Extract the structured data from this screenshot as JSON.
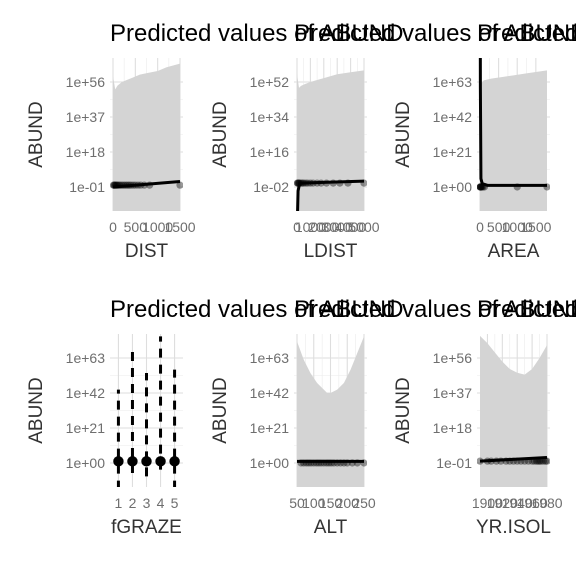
{
  "chart_data": [
    {
      "type": "line",
      "title": "Predicted values of ABUND",
      "xlabel": "DIST",
      "ylabel": "ABUND",
      "xlim": [
        0,
        1500
      ],
      "x_ticks": [
        0,
        500,
        1000,
        1500
      ],
      "x_tick_labels": [
        "0",
        "500",
        "1000",
        "1500"
      ],
      "y_scale": "log",
      "y_ticks": [
        "1e-01",
        "1e+18",
        "1e+37",
        "1e+56"
      ],
      "grid": true,
      "ci_band": {
        "x": [
          0,
          50,
          100,
          200,
          400,
          600,
          800,
          1000,
          1200,
          1500
        ],
        "upper": [
          59,
          52,
          54,
          56,
          58,
          60,
          61,
          62,
          64,
          66
        ]
      },
      "series": [
        {
          "x": [
            0,
            1500
          ],
          "y": [
            -1,
            2
          ]
        }
      ],
      "points": [
        {
          "x": 10,
          "y": 0
        },
        {
          "x": 25,
          "y": 0
        },
        {
          "x": 40,
          "y": 0
        },
        {
          "x": 60,
          "y": 0
        },
        {
          "x": 80,
          "y": 0
        },
        {
          "x": 100,
          "y": 0
        },
        {
          "x": 130,
          "y": 0
        },
        {
          "x": 160,
          "y": 0
        },
        {
          "x": 200,
          "y": 0
        },
        {
          "x": 240,
          "y": 0
        },
        {
          "x": 280,
          "y": 0
        },
        {
          "x": 320,
          "y": 0
        },
        {
          "x": 360,
          "y": 0
        },
        {
          "x": 400,
          "y": 0
        },
        {
          "x": 450,
          "y": 0
        },
        {
          "x": 500,
          "y": 0
        },
        {
          "x": 560,
          "y": 0
        },
        {
          "x": 620,
          "y": 0
        },
        {
          "x": 700,
          "y": 0
        },
        {
          "x": 820,
          "y": 0
        },
        {
          "x": 1500,
          "y": 0
        }
      ]
    },
    {
      "type": "line",
      "title": "Predicted values of ABUND",
      "xlabel": "LDIST",
      "ylabel": "ABUND",
      "xlim": [
        0,
        5000
      ],
      "x_ticks": [
        0,
        1000,
        2000,
        3000,
        4000,
        5000
      ],
      "x_tick_labels": [
        "0",
        "1000",
        "2000",
        "3000",
        "4000",
        "5000"
      ],
      "y_scale": "log",
      "y_ticks": [
        "1e-02",
        "1e+16",
        "1e+34",
        "1e+52"
      ],
      "grid": true,
      "ci_band": {
        "x": [
          0,
          150,
          300,
          600,
          1000,
          1500,
          2000,
          3000,
          4000,
          5000
        ],
        "upper": [
          56,
          49,
          50,
          51,
          52,
          53,
          54,
          56,
          57,
          58
        ]
      },
      "series": [
        {
          "x": [
            0,
            80,
            200,
            5000
          ],
          "y": [
            -27,
            -4,
            0,
            1
          ]
        }
      ],
      "points": [
        {
          "x": 20,
          "y": 0
        },
        {
          "x": 60,
          "y": 0
        },
        {
          "x": 100,
          "y": 0
        },
        {
          "x": 150,
          "y": 0
        },
        {
          "x": 200,
          "y": 0
        },
        {
          "x": 300,
          "y": 0
        },
        {
          "x": 400,
          "y": 0
        },
        {
          "x": 500,
          "y": 0
        },
        {
          "x": 650,
          "y": 0
        },
        {
          "x": 800,
          "y": 0
        },
        {
          "x": 1000,
          "y": 0
        },
        {
          "x": 1200,
          "y": 0
        },
        {
          "x": 1500,
          "y": 0
        },
        {
          "x": 1800,
          "y": 0
        },
        {
          "x": 2200,
          "y": 0
        },
        {
          "x": 2700,
          "y": 0
        },
        {
          "x": 3200,
          "y": 0
        },
        {
          "x": 3800,
          "y": 0
        },
        {
          "x": 5000,
          "y": 0
        }
      ]
    },
    {
      "type": "line",
      "title": "Predicted values of ABUND",
      "xlabel": "AREA",
      "ylabel": "ABUND",
      "xlim": [
        0,
        1800
      ],
      "x_ticks": [
        0,
        500,
        1000,
        1500
      ],
      "x_tick_labels": [
        "0",
        "500",
        "1000",
        "1500"
      ],
      "y_scale": "log",
      "y_ticks": [
        "1e+00",
        "1e+21",
        "1e+42",
        "1e+63"
      ],
      "grid": true,
      "ci_band": {
        "x": [
          0,
          100,
          300,
          600,
          900,
          1200,
          1500,
          1800
        ],
        "upper": [
          61,
          64,
          65,
          66,
          67,
          68,
          69,
          70
        ]
      },
      "series": [
        {
          "x": [
            5,
            10,
            25,
            60,
            200,
            600,
            1000,
            1800
          ],
          "y": [
            140,
            60,
            5,
            2,
            1,
            1,
            1,
            1
          ]
        }
      ],
      "points": [
        {
          "x": 2,
          "y": 0
        },
        {
          "x": 5,
          "y": 0
        },
        {
          "x": 10,
          "y": 0
        },
        {
          "x": 20,
          "y": 0
        },
        {
          "x": 35,
          "y": 0
        },
        {
          "x": 50,
          "y": 0
        },
        {
          "x": 80,
          "y": 0
        },
        {
          "x": 120,
          "y": 0
        },
        {
          "x": 1000,
          "y": 0
        },
        {
          "x": 1800,
          "y": 0
        }
      ]
    },
    {
      "type": "scatter",
      "title": "Predicted values of ABUND",
      "xlabel": "fGRAZE",
      "ylabel": "ABUND",
      "categories": [
        "1",
        "2",
        "3",
        "4",
        "5"
      ],
      "y_scale": "log",
      "y_ticks": [
        "1e+00",
        "1e+21",
        "1e+42",
        "1e+63"
      ],
      "grid": true,
      "values": [
        1,
        1,
        1,
        1,
        1
      ],
      "ci_low": [
        -16,
        -6,
        -8,
        -4,
        -16
      ],
      "ci_high": [
        44,
        70,
        54,
        76,
        56
      ]
    },
    {
      "type": "line",
      "title": "Predicted values of ABUND",
      "xlabel": "ALT",
      "ylabel": "ABUND",
      "xlim": [
        50,
        250
      ],
      "x_ticks": [
        50,
        100,
        150,
        200,
        250
      ],
      "x_tick_labels": [
        "50",
        "100",
        "150",
        "200",
        "250"
      ],
      "y_scale": "log",
      "y_ticks": [
        "1e+00",
        "1e+21",
        "1e+42",
        "1e+63"
      ],
      "grid": true,
      "ci_band": {
        "x": [
          50,
          70,
          90,
          110,
          130,
          140,
          150,
          170,
          190,
          210,
          230,
          250
        ],
        "upper": [
          73,
          62,
          54,
          48,
          44,
          42,
          42,
          44,
          48,
          56,
          66,
          76
        ]
      },
      "series": [
        {
          "x": [
            50,
            250
          ],
          "y": [
            1,
            1
          ]
        }
      ],
      "points": [
        {
          "x": 62,
          "y": 0
        },
        {
          "x": 70,
          "y": 0
        },
        {
          "x": 78,
          "y": 0
        },
        {
          "x": 85,
          "y": 0
        },
        {
          "x": 92,
          "y": 0
        },
        {
          "x": 100,
          "y": 0
        },
        {
          "x": 108,
          "y": 0
        },
        {
          "x": 115,
          "y": 0
        },
        {
          "x": 122,
          "y": 0
        },
        {
          "x": 130,
          "y": 0
        },
        {
          "x": 138,
          "y": 0
        },
        {
          "x": 145,
          "y": 0
        },
        {
          "x": 152,
          "y": 0
        },
        {
          "x": 160,
          "y": 0
        },
        {
          "x": 170,
          "y": 0
        },
        {
          "x": 180,
          "y": 0
        },
        {
          "x": 190,
          "y": 0
        },
        {
          "x": 200,
          "y": 0
        },
        {
          "x": 215,
          "y": 0
        },
        {
          "x": 230,
          "y": 0
        },
        {
          "x": 250,
          "y": 0
        }
      ]
    },
    {
      "type": "line",
      "title": "Predicted values of ABUND",
      "xlabel": "YR.ISOL",
      "ylabel": "ABUND",
      "xlim": [
        1890,
        1980
      ],
      "x_ticks": [
        1900,
        1920,
        1940,
        1960,
        1980
      ],
      "x_tick_labels": [
        "1900",
        "1920",
        "1940",
        "1960",
        "1980"
      ],
      "y_scale": "log",
      "y_ticks": [
        "1e-01",
        "1e+18",
        "1e+37",
        "1e+56"
      ],
      "grid": true,
      "ci_band": {
        "x": [
          1890,
          1900,
          1910,
          1920,
          1930,
          1940,
          1950,
          1960,
          1970,
          1980
        ],
        "upper": [
          68,
          64,
          59,
          54,
          50,
          48,
          47,
          50,
          56,
          63
        ]
      },
      "series": [
        {
          "x": [
            1890,
            1980
          ],
          "y": [
            0,
            2
          ]
        }
      ],
      "points": [
        {
          "x": 1890,
          "y": 0
        },
        {
          "x": 1900,
          "y": 0
        },
        {
          "x": 1905,
          "y": 0
        },
        {
          "x": 1912,
          "y": 0
        },
        {
          "x": 1918,
          "y": 0
        },
        {
          "x": 1925,
          "y": 0
        },
        {
          "x": 1930,
          "y": 0
        },
        {
          "x": 1935,
          "y": 0
        },
        {
          "x": 1940,
          "y": 0
        },
        {
          "x": 1945,
          "y": 0
        },
        {
          "x": 1950,
          "y": 0
        },
        {
          "x": 1955,
          "y": 0
        },
        {
          "x": 1960,
          "y": 0
        },
        {
          "x": 1963,
          "y": 0
        },
        {
          "x": 1966,
          "y": 0
        },
        {
          "x": 1968,
          "y": 0
        },
        {
          "x": 1970,
          "y": 0
        },
        {
          "x": 1972,
          "y": 0
        },
        {
          "x": 1975,
          "y": 0
        },
        {
          "x": 1978,
          "y": 0
        },
        {
          "x": 1980,
          "y": 0
        }
      ]
    }
  ]
}
